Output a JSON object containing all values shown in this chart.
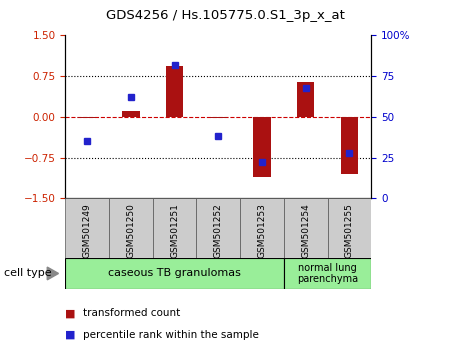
{
  "title": "GDS4256 / Hs.105775.0.S1_3p_x_at",
  "samples": [
    "GSM501249",
    "GSM501250",
    "GSM501251",
    "GSM501252",
    "GSM501253",
    "GSM501254",
    "GSM501255"
  ],
  "transformed_count": [
    -0.02,
    0.1,
    0.93,
    -0.02,
    -1.1,
    0.65,
    -1.05
  ],
  "percentile_rank": [
    35,
    62,
    82,
    38,
    22,
    68,
    28
  ],
  "ylim_left": [
    -1.5,
    1.5
  ],
  "ylim_right": [
    0,
    100
  ],
  "yticks_left": [
    -1.5,
    -0.75,
    0,
    0.75,
    1.5
  ],
  "yticks_right": [
    0,
    25,
    50,
    75,
    100
  ],
  "bar_color": "#aa1111",
  "dot_color": "#2222cc",
  "group1_label": "caseous TB granulomas",
  "group2_label": "normal lung\nparenchyma",
  "group_bg_color": "#99ee99",
  "tick_box_color": "#cccccc",
  "cell_type_label": "cell type",
  "legend_red_label": "transformed count",
  "legend_blue_label": "percentile rank within the sample"
}
